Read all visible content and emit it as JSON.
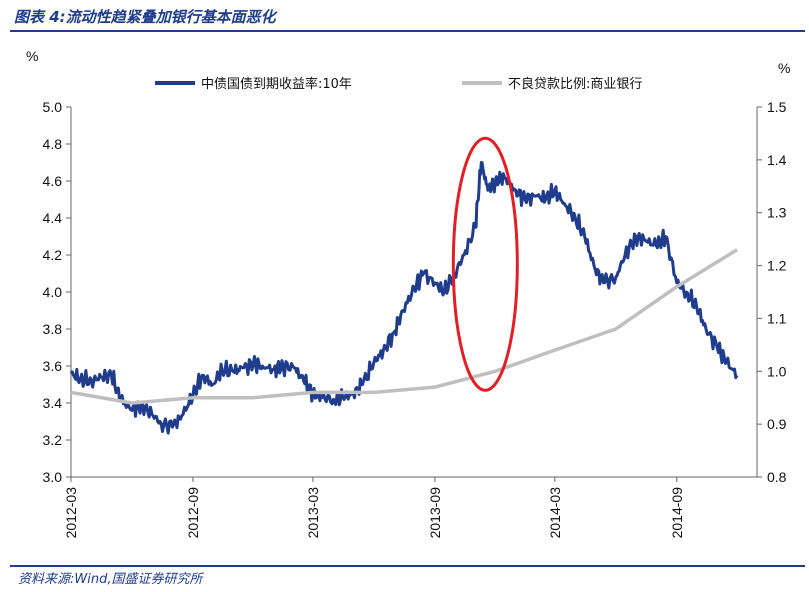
{
  "figure": {
    "title": "图表 4:流动性趋紧叠加银行基本面恶化",
    "source": "资料来源:Wind,国盛证券研究所"
  },
  "chart_data": {
    "type": "line",
    "y_unit_left": "%",
    "y_unit_right": "%",
    "ylim_left": [
      3.0,
      5.0
    ],
    "yticks_left": [
      "5.0",
      "4.8",
      "4.6",
      "4.4",
      "4.2",
      "4.0",
      "3.8",
      "3.6",
      "3.4",
      "3.2",
      "3.0"
    ],
    "ylim_right": [
      0.8,
      1.5
    ],
    "yticks_right": [
      "1.5",
      "1.4",
      "1.3",
      "1.2",
      "1.1",
      "1.0",
      "0.9",
      "0.8"
    ],
    "xticks": [
      "2012-03",
      "2012-09",
      "2013-03",
      "2013-09",
      "2014-03",
      "2014-09"
    ],
    "legend_position": "top",
    "grid": false,
    "series": [
      {
        "name": "中债国债到期收益率:10年",
        "axis": "left",
        "color": "#1f3d8c",
        "x": [
          "2012-03",
          "2012-03-15",
          "2012-04",
          "2012-04-15",
          "2012-05",
          "2012-05-15",
          "2012-06",
          "2012-06-15",
          "2012-07",
          "2012-07-15",
          "2012-08",
          "2012-08-15",
          "2012-09",
          "2012-09-15",
          "2012-10",
          "2012-10-15",
          "2012-11",
          "2012-11-15",
          "2012-12",
          "2012-12-15",
          "2013-01",
          "2013-01-15",
          "2013-02",
          "2013-02-15",
          "2013-03",
          "2013-03-15",
          "2013-04",
          "2013-04-15",
          "2013-05",
          "2013-05-15",
          "2013-06",
          "2013-06-15",
          "2013-07",
          "2013-07-15",
          "2013-08",
          "2013-08-15",
          "2013-09",
          "2013-09-15",
          "2013-10",
          "2013-10-15",
          "2013-11",
          "2013-11-10",
          "2013-11-20",
          "2013-12",
          "2013-12-15",
          "2014-01",
          "2014-01-15",
          "2014-02",
          "2014-02-15",
          "2014-03",
          "2014-03-15",
          "2014-04",
          "2014-04-15",
          "2014-05",
          "2014-05-15",
          "2014-06",
          "2014-06-15",
          "2014-07",
          "2014-07-15",
          "2014-08",
          "2014-08-15",
          "2014-09",
          "2014-09-15",
          "2014-10",
          "2014-10-15",
          "2014-11",
          "2014-11-15",
          "2014-12"
        ],
        "values": [
          3.56,
          3.53,
          3.52,
          3.54,
          3.55,
          3.42,
          3.36,
          3.39,
          3.34,
          3.29,
          3.27,
          3.33,
          3.44,
          3.55,
          3.5,
          3.58,
          3.57,
          3.59,
          3.61,
          3.6,
          3.58,
          3.6,
          3.59,
          3.52,
          3.45,
          3.43,
          3.42,
          3.43,
          3.45,
          3.5,
          3.62,
          3.68,
          3.78,
          3.9,
          4.02,
          4.1,
          4.05,
          4.0,
          4.1,
          4.2,
          4.35,
          4.7,
          4.55,
          4.6,
          4.62,
          4.55,
          4.5,
          4.52,
          4.5,
          4.55,
          4.48,
          4.4,
          4.3,
          4.12,
          4.05,
          4.08,
          4.2,
          4.3,
          4.28,
          4.25,
          4.3,
          4.05,
          4.0,
          3.92,
          3.8,
          3.7,
          3.62,
          3.55
        ]
      },
      {
        "name": "不良贷款比例:商业银行",
        "axis": "right",
        "color": "#bfbfbf",
        "x": [
          "2012-03",
          "2012-06",
          "2012-09",
          "2012-12",
          "2013-03",
          "2013-06",
          "2013-09",
          "2013-12",
          "2014-03",
          "2014-06",
          "2014-09",
          "2014-12"
        ],
        "values": [
          0.96,
          0.94,
          0.95,
          0.95,
          0.96,
          0.96,
          0.97,
          1.0,
          1.04,
          1.08,
          1.16,
          1.23
        ]
      }
    ],
    "annotations": [
      {
        "type": "ellipse",
        "color": "#e31e24",
        "center_x": "2013-11",
        "center_y_left": 4.15
      }
    ]
  }
}
